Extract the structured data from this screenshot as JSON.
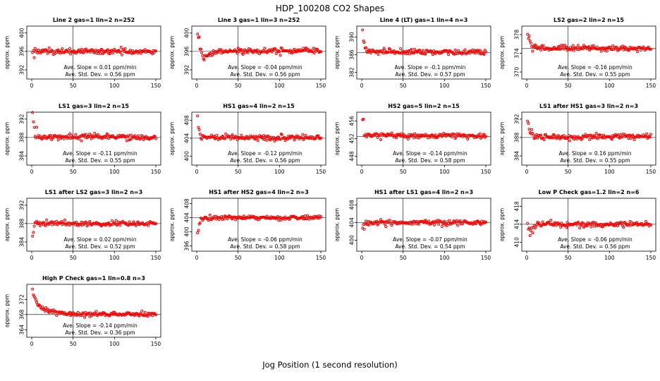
{
  "title": "HDP_100208  CO2 Shapes",
  "xlabel": "Jog Position (1 second resolution)",
  "colors": {
    "point": "#ff0000",
    "axis": "#000000",
    "background": "#ffffff"
  },
  "panel_layout": {
    "ylabel": "approx. ppm",
    "xticks": [
      0,
      50,
      100,
      150
    ],
    "xlim": [
      -6,
      156
    ],
    "vline": 50,
    "n_points": 150,
    "noise_sd": 0.3,
    "early_noise_factor": 1.8,
    "grid": "off",
    "legend": "none"
  },
  "chart_data": [
    {
      "type": "scatter",
      "title": "Line 2 gas=1 lin=2 n=252",
      "yticks": [
        392,
        396,
        400
      ],
      "ylim": [
        390,
        401.5
      ],
      "baseline": 396,
      "anchors": [
        [
          1,
          395.6
        ],
        [
          3,
          396
        ],
        [
          150,
          396
        ]
      ],
      "slope_label": "Ave. Slope =  0.01  ppm/min",
      "std_label": "Ave. Std. Dev. =  0.56  ppm"
    },
    {
      "type": "scatter",
      "title": "Line 3 gas=1 lin=3 n=252",
      "yticks": [
        392,
        396,
        400
      ],
      "ylim": [
        390,
        401.5
      ],
      "baseline": 396,
      "anchors": [
        [
          1,
          400
        ],
        [
          3,
          399.2
        ],
        [
          4,
          397
        ],
        [
          6,
          394.8
        ],
        [
          9,
          394.4
        ],
        [
          13,
          394.9
        ],
        [
          18,
          395.6
        ],
        [
          28,
          396
        ],
        [
          150,
          396
        ]
      ],
      "slope_label": "Ave. Slope =  -0.04  ppm/min",
      "std_label": "Ave. Std. Dev. =  0.56  ppm"
    },
    {
      "type": "scatter",
      "title": "Line 4 (LT) gas=1 lin=4 n=3",
      "yticks": [
        382,
        386,
        390
      ],
      "ylim": [
        380.5,
        392.5
      ],
      "baseline": 386.5,
      "anchors": [
        [
          1,
          391.5
        ],
        [
          2,
          390
        ],
        [
          3,
          388.3
        ],
        [
          5,
          387.2
        ],
        [
          9,
          386.8
        ],
        [
          150,
          386.5
        ]
      ],
      "slope_label": "Ave. Slope =  -0.1  ppm/min",
      "std_label": "Ave. Std. Dev. =  0.57  ppm"
    },
    {
      "type": "scatter",
      "title": "LS2 gas=2 lin=2 n=15",
      "yticks": [
        370,
        374,
        378
      ],
      "ylim": [
        368.5,
        379.8
      ],
      "baseline": 375,
      "anchors": [
        [
          1,
          378.8
        ],
        [
          2,
          378.2
        ],
        [
          4,
          376.4
        ],
        [
          7,
          375.4
        ],
        [
          12,
          375.1
        ],
        [
          150,
          375
        ]
      ],
      "slope_label": "Ave. Slope =  -0.16  ppm/min",
      "std_label": "Ave. Std. Dev. =  0.55  ppm"
    },
    {
      "type": "scatter",
      "title": "LS1 gas=3 lin=2 n=15",
      "yticks": [
        384,
        388,
        392
      ],
      "ylim": [
        382,
        393.5
      ],
      "baseline": 388,
      "anchors": [
        [
          1,
          392.6
        ],
        [
          2,
          391.4
        ],
        [
          3,
          389.9
        ],
        [
          5,
          388.7
        ],
        [
          9,
          388.2
        ],
        [
          150,
          388
        ]
      ],
      "slope_label": "Ave. Slope =  -0.11  ppm/min",
      "std_label": "Ave. Std. Dev. =  0.55  ppm"
    },
    {
      "type": "scatter",
      "title": "HS1 gas=4 lin=2 n=15",
      "yticks": [
        400,
        404,
        408
      ],
      "ylim": [
        398,
        409.8
      ],
      "baseline": 404,
      "anchors": [
        [
          1,
          408.3
        ],
        [
          2,
          407.2
        ],
        [
          3,
          405.7
        ],
        [
          5,
          404.7
        ],
        [
          9,
          404.2
        ],
        [
          150,
          404
        ]
      ],
      "slope_label": "Ave. Slope =  -0.12  ppm/min",
      "std_label": "Ave. Std. Dev. =  0.56  ppm"
    },
    {
      "type": "scatter",
      "title": "HS2 gas=5 lin=2 n=15",
      "yticks": [
        448,
        452,
        456
      ],
      "ylim": [
        446,
        458
      ],
      "baseline": 452.5,
      "anchors": [
        [
          1,
          456.7
        ],
        [
          2,
          456.2
        ],
        [
          3,
          454.2
        ],
        [
          5,
          453.1
        ],
        [
          9,
          452.8
        ],
        [
          150,
          452.5
        ]
      ],
      "slope_label": "Ave. Slope =  -0.14  ppm/min",
      "std_label": "Ave. Std. Dev. =  0.58  ppm"
    },
    {
      "type": "scatter",
      "title": "LS1 after HS1 gas=3 lin=2 n=3",
      "yticks": [
        384,
        388,
        392
      ],
      "ylim": [
        382,
        393.5
      ],
      "baseline": 388,
      "anchors": [
        [
          1,
          391.8
        ],
        [
          2,
          390.6
        ],
        [
          3,
          389.2
        ],
        [
          5,
          388.4
        ],
        [
          9,
          388
        ],
        [
          150,
          388.3
        ]
      ],
      "slope_label": "Ave. Slope =  0.16  ppm/min",
      "std_label": "Ave. Std. Dev. =  0.55  ppm"
    },
    {
      "type": "scatter",
      "title": "LS1 after LS2 gas=3 lin=2 n=3",
      "yticks": [
        384,
        388,
        392
      ],
      "ylim": [
        382,
        393.5
      ],
      "baseline": 388,
      "anchors": [
        [
          1,
          385.4
        ],
        [
          2,
          386.6
        ],
        [
          3,
          387.5
        ],
        [
          5,
          388
        ],
        [
          150,
          388
        ]
      ],
      "slope_label": "Ave. Slope =  0.02  ppm/min",
      "std_label": "Ave. Std. Dev. =  0.52  ppm"
    },
    {
      "type": "scatter",
      "title": "HS1 after HS2 gas=4 lin=2 n=3",
      "yticks": [
        396,
        400,
        404,
        408
      ],
      "ylim": [
        394.5,
        409.5
      ],
      "baseline": 404,
      "anchors": [
        [
          1,
          399.8
        ],
        [
          2,
          400.8
        ],
        [
          3,
          402
        ],
        [
          5,
          403.4
        ],
        [
          8,
          404
        ],
        [
          150,
          404
        ]
      ],
      "slope_label": "Ave. Slope =  -0.06  ppm/min",
      "std_label": "Ave. Std. Dev. =  0.58  ppm"
    },
    {
      "type": "scatter",
      "title": "HS1 after LS1 gas=4 lin=2 n=3",
      "yticks": [
        400,
        404,
        408
      ],
      "ylim": [
        397.5,
        409.5
      ],
      "baseline": 404,
      "anchors": [
        [
          1,
          402.3
        ],
        [
          2,
          403
        ],
        [
          4,
          403.8
        ],
        [
          7,
          404
        ],
        [
          150,
          404
        ]
      ],
      "slope_label": "Ave. Slope =  -0.07  ppm/min",
      "std_label": "Ave. Std. Dev. =  0.54  ppm"
    },
    {
      "type": "scatter",
      "title": "Low P Check gas=1.2 lin=2 n=6",
      "yticks": [
        410,
        414,
        418
      ],
      "ylim": [
        408,
        419.8
      ],
      "baseline": 414,
      "anchors": [
        [
          1,
          414.6
        ],
        [
          2,
          413.2
        ],
        [
          4,
          411.8
        ],
        [
          6,
          412.6
        ],
        [
          9,
          413.6
        ],
        [
          14,
          414
        ],
        [
          150,
          414
        ]
      ],
      "slope_label": "Ave. Slope =  -0.06  ppm/min",
      "std_label": "Ave. Std. Dev. =  0.56  ppm"
    },
    {
      "type": "scatter",
      "title": "High P Check gas=1 lin=0.8 n=3",
      "yticks": [
        364,
        368,
        372
      ],
      "ylim": [
        362,
        376
      ],
      "baseline": 368,
      "anchors": [
        [
          1,
          374.6
        ],
        [
          2,
          373.6
        ],
        [
          4,
          372.2
        ],
        [
          7,
          371
        ],
        [
          11,
          370
        ],
        [
          16,
          369.3
        ],
        [
          24,
          368.7
        ],
        [
          40,
          368.3
        ],
        [
          150,
          368
        ]
      ],
      "slope_label": "Ave. Slope =  -0.14  ppm/min",
      "std_label": "Ave. Std. Dev. =  0.36  ppm"
    }
  ]
}
